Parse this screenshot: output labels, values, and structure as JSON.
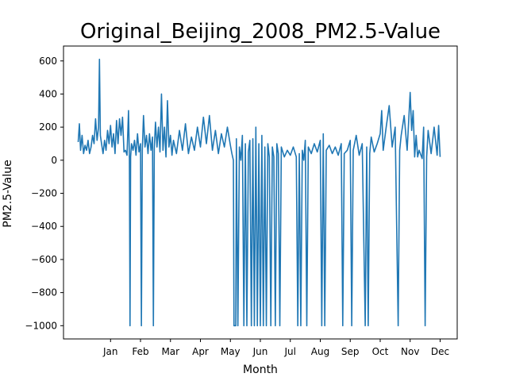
{
  "chart_data": {
    "type": "line",
    "title": "Original_Beijing_2008_PM2.5-Value",
    "xlabel": "Month",
    "ylabel": "PM2.5-Value",
    "x_ticks": [
      "Jan",
      "Feb",
      "Mar",
      "Apr",
      "May",
      "Jun",
      "Jul",
      "Aug",
      "Sep",
      "Oct",
      "Nov",
      "Dec"
    ],
    "x_tick_positions": [
      1,
      2,
      3,
      4,
      5,
      6,
      7,
      8,
      9,
      10,
      11,
      12
    ],
    "xlim": [
      -0.57,
      12.57
    ],
    "ylim": [
      -1080,
      690
    ],
    "y_ticks": [
      -1000,
      -800,
      -600,
      -400,
      -200,
      0,
      200,
      400,
      600
    ],
    "y_tick_labels": [
      "−1000",
      "−800",
      "−600",
      "−400",
      "−200",
      "0",
      "200",
      "400",
      "600"
    ],
    "series": [
      {
        "color": "#1f77b4",
        "points": [
          [
            -0.08,
            110
          ],
          [
            -0.04,
            220
          ],
          [
            0.0,
            60
          ],
          [
            0.05,
            150
          ],
          [
            0.1,
            40
          ],
          [
            0.15,
            90
          ],
          [
            0.2,
            60
          ],
          [
            0.25,
            120
          ],
          [
            0.3,
            40
          ],
          [
            0.35,
            80
          ],
          [
            0.4,
            150
          ],
          [
            0.45,
            100
          ],
          [
            0.5,
            250
          ],
          [
            0.55,
            120
          ],
          [
            0.6,
            200
          ],
          [
            0.63,
            610
          ],
          [
            0.66,
            150
          ],
          [
            0.7,
            100
          ],
          [
            0.75,
            40
          ],
          [
            0.8,
            120
          ],
          [
            0.85,
            60
          ],
          [
            0.9,
            180
          ],
          [
            0.95,
            100
          ],
          [
            1.0,
            210
          ],
          [
            1.05,
            80
          ],
          [
            1.1,
            160
          ],
          [
            1.15,
            40
          ],
          [
            1.2,
            240
          ],
          [
            1.25,
            100
          ],
          [
            1.3,
            250
          ],
          [
            1.35,
            150
          ],
          [
            1.4,
            260
          ],
          [
            1.45,
            50
          ],
          [
            1.5,
            60
          ],
          [
            1.55,
            30
          ],
          [
            1.6,
            300
          ],
          [
            1.63,
            10
          ],
          [
            1.65,
            -1000
          ],
          [
            1.67,
            20
          ],
          [
            1.7,
            100
          ],
          [
            1.75,
            60
          ],
          [
            1.8,
            120
          ],
          [
            1.85,
            30
          ],
          [
            1.9,
            160
          ],
          [
            1.95,
            50
          ],
          [
            2.0,
            100
          ],
          [
            2.03,
            -1000
          ],
          [
            2.06,
            60
          ],
          [
            2.1,
            270
          ],
          [
            2.15,
            80
          ],
          [
            2.2,
            150
          ],
          [
            2.25,
            40
          ],
          [
            2.3,
            160
          ],
          [
            2.35,
            60
          ],
          [
            2.4,
            140
          ],
          [
            2.43,
            -1000
          ],
          [
            2.46,
            70
          ],
          [
            2.5,
            230
          ],
          [
            2.55,
            80
          ],
          [
            2.6,
            200
          ],
          [
            2.65,
            50
          ],
          [
            2.7,
            400
          ],
          [
            2.75,
            60
          ],
          [
            2.8,
            200
          ],
          [
            2.85,
            20
          ],
          [
            2.9,
            360
          ],
          [
            2.95,
            80
          ],
          [
            3.0,
            150
          ],
          [
            3.05,
            30
          ],
          [
            3.1,
            120
          ],
          [
            3.2,
            40
          ],
          [
            3.3,
            180
          ],
          [
            3.4,
            60
          ],
          [
            3.5,
            220
          ],
          [
            3.6,
            40
          ],
          [
            3.7,
            140
          ],
          [
            3.8,
            60
          ],
          [
            3.9,
            200
          ],
          [
            4.0,
            80
          ],
          [
            4.1,
            260
          ],
          [
            4.2,
            100
          ],
          [
            4.3,
            270
          ],
          [
            4.4,
            60
          ],
          [
            4.5,
            180
          ],
          [
            4.6,
            40
          ],
          [
            4.7,
            160
          ],
          [
            4.8,
            80
          ],
          [
            4.9,
            200
          ],
          [
            5.0,
            90
          ],
          [
            5.05,
            40
          ],
          [
            5.1,
            0
          ],
          [
            5.12,
            -1000
          ],
          [
            5.18,
            -1000
          ],
          [
            5.2,
            130
          ],
          [
            5.25,
            -1000
          ],
          [
            5.3,
            80
          ],
          [
            5.35,
            0
          ],
          [
            5.4,
            150
          ],
          [
            5.45,
            -1000
          ],
          [
            5.5,
            100
          ],
          [
            5.55,
            -1000
          ],
          [
            5.6,
            50
          ],
          [
            5.65,
            120
          ],
          [
            5.7,
            -1000
          ],
          [
            5.75,
            130
          ],
          [
            5.8,
            -1000
          ],
          [
            5.85,
            200
          ],
          [
            5.9,
            -1000
          ],
          [
            5.95,
            100
          ],
          [
            6.0,
            -1000
          ],
          [
            6.05,
            150
          ],
          [
            6.1,
            -1000
          ],
          [
            6.15,
            80
          ],
          [
            6.2,
            -1000
          ],
          [
            6.25,
            100
          ],
          [
            6.3,
            20
          ],
          [
            6.35,
            -1000
          ],
          [
            6.4,
            80
          ],
          [
            6.45,
            20
          ],
          [
            6.5,
            -1000
          ],
          [
            6.55,
            100
          ],
          [
            6.6,
            40
          ],
          [
            6.65,
            -1000
          ],
          [
            6.7,
            80
          ],
          [
            6.8,
            20
          ],
          [
            6.9,
            60
          ],
          [
            7.0,
            30
          ],
          [
            7.1,
            80
          ],
          [
            7.2,
            20
          ],
          [
            7.25,
            -1000
          ],
          [
            7.3,
            40
          ],
          [
            7.35,
            -1000
          ],
          [
            7.4,
            60
          ],
          [
            7.45,
            0
          ],
          [
            7.5,
            120
          ],
          [
            7.55,
            -1000
          ],
          [
            7.6,
            80
          ],
          [
            7.7,
            40
          ],
          [
            7.8,
            100
          ],
          [
            7.9,
            50
          ],
          [
            8.0,
            120
          ],
          [
            8.05,
            -1000
          ],
          [
            8.1,
            160
          ],
          [
            8.15,
            -1000
          ],
          [
            8.2,
            60
          ],
          [
            8.3,
            90
          ],
          [
            8.4,
            40
          ],
          [
            8.5,
            80
          ],
          [
            8.6,
            30
          ],
          [
            8.7,
            100
          ],
          [
            8.75,
            -1000
          ],
          [
            8.8,
            40
          ],
          [
            8.9,
            60
          ],
          [
            9.0,
            120
          ],
          [
            9.05,
            -1000
          ],
          [
            9.1,
            60
          ],
          [
            9.2,
            150
          ],
          [
            9.3,
            30
          ],
          [
            9.4,
            100
          ],
          [
            9.5,
            -1000
          ],
          [
            9.55,
            80
          ],
          [
            9.6,
            -1000
          ],
          [
            9.65,
            40
          ],
          [
            9.7,
            140
          ],
          [
            9.8,
            50
          ],
          [
            9.9,
            100
          ],
          [
            10.0,
            160
          ],
          [
            10.05,
            300
          ],
          [
            10.1,
            60
          ],
          [
            10.2,
            200
          ],
          [
            10.3,
            330
          ],
          [
            10.4,
            80
          ],
          [
            10.5,
            200
          ],
          [
            10.6,
            -1000
          ],
          [
            10.65,
            60
          ],
          [
            10.7,
            150
          ],
          [
            10.8,
            270
          ],
          [
            10.9,
            60
          ],
          [
            11.0,
            410
          ],
          [
            11.05,
            180
          ],
          [
            11.1,
            300
          ],
          [
            11.15,
            20
          ],
          [
            11.2,
            150
          ],
          [
            11.25,
            20
          ],
          [
            11.3,
            60
          ],
          [
            11.4,
            10
          ],
          [
            11.45,
            200
          ],
          [
            11.5,
            -1000
          ],
          [
            11.55,
            20
          ],
          [
            11.6,
            180
          ],
          [
            11.7,
            40
          ],
          [
            11.8,
            200
          ],
          [
            11.9,
            30
          ],
          [
            11.95,
            210
          ],
          [
            12.0,
            20
          ]
        ]
      }
    ]
  }
}
